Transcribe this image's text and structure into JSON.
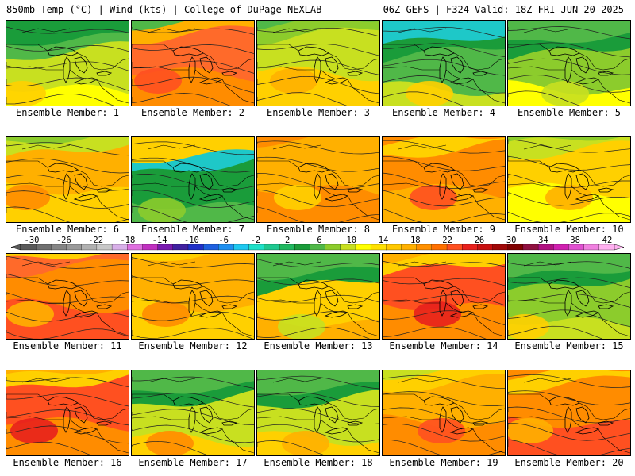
{
  "header": {
    "left_title": "850mb Temp (°C) | Wind (kts) | College of DuPage NEXLAB",
    "right_title": "06Z GEFS | F324 Valid: 18Z FRI JUN 20 2025"
  },
  "members": [
    {
      "label": "Ensemble Member: 1",
      "scheme": "cool",
      "tone": [
        "#c8e020",
        "#ffff00",
        "#ffd000",
        "#50b848",
        "#1a9c3a"
      ]
    },
    {
      "label": "Ensemble Member: 2",
      "scheme": "hot",
      "tone": [
        "#ff6a2a",
        "#ff8c00",
        "#ff5020",
        "#ffb000",
        "#50b848"
      ]
    },
    {
      "label": "Ensemble Member: 3",
      "scheme": "warm",
      "tone": [
        "#c8e020",
        "#ffd000",
        "#ffb000",
        "#8ccc2c",
        "#50b848"
      ]
    },
    {
      "label": "Ensemble Member: 4",
      "scheme": "cold",
      "tone": [
        "#50b848",
        "#c8e020",
        "#ffd000",
        "#1a9c3a",
        "#1ec8c8"
      ]
    },
    {
      "label": "Ensemble Member: 5",
      "scheme": "cold",
      "tone": [
        "#8ccc2c",
        "#ffff00",
        "#c8e020",
        "#1a9c3a",
        "#50b848"
      ]
    },
    {
      "label": "Ensemble Member: 6",
      "scheme": "warm",
      "tone": [
        "#ffb000",
        "#ffd000",
        "#ff8c00",
        "#c8e020",
        "#8ccc2c"
      ]
    },
    {
      "label": "Ensemble Member: 7",
      "scheme": "cold",
      "tone": [
        "#1a9c3a",
        "#50b848",
        "#8ccc2c",
        "#1ec8c8",
        "#ffd000"
      ]
    },
    {
      "label": "Ensemble Member: 8",
      "scheme": "warm",
      "tone": [
        "#ffb000",
        "#ff8c00",
        "#ffd000",
        "#ffb000",
        "#ff8c00"
      ]
    },
    {
      "label": "Ensemble Member: 9",
      "scheme": "hot",
      "tone": [
        "#ff8c00",
        "#ffb000",
        "#ff5020",
        "#ffd000",
        "#ff8c00"
      ]
    },
    {
      "label": "Ensemble Member: 10",
      "scheme": "warm",
      "tone": [
        "#ffd000",
        "#ffff00",
        "#ffb000",
        "#c8e020",
        "#8ccc2c"
      ]
    },
    {
      "label": "Ensemble Member: 11",
      "scheme": "hot",
      "tone": [
        "#ff8c00",
        "#ff5020",
        "#ffb000",
        "#ff6a2a",
        "#ffd000"
      ]
    },
    {
      "label": "Ensemble Member: 12",
      "scheme": "warm",
      "tone": [
        "#ffb000",
        "#ffd000",
        "#ff8c00",
        "#ffb000",
        "#ffd000"
      ]
    },
    {
      "label": "Ensemble Member: 13",
      "scheme": "cool",
      "tone": [
        "#ffd000",
        "#ffb000",
        "#c8e020",
        "#1a9c3a",
        "#50b848"
      ]
    },
    {
      "label": "Ensemble Member: 14",
      "scheme": "hot",
      "tone": [
        "#ff5020",
        "#ff8c00",
        "#e8201c",
        "#ffd000",
        "#ffb000"
      ]
    },
    {
      "label": "Ensemble Member: 15",
      "scheme": "cold",
      "tone": [
        "#8ccc2c",
        "#c8e020",
        "#ffd000",
        "#1a9c3a",
        "#50b848"
      ]
    },
    {
      "label": "Ensemble Member: 16",
      "scheme": "hot",
      "tone": [
        "#ff5020",
        "#ff8c00",
        "#e8201c",
        "#ffd000",
        "#ffb000"
      ]
    },
    {
      "label": "Ensemble Member: 17",
      "scheme": "cool",
      "tone": [
        "#c8e020",
        "#ffd000",
        "#ff8c00",
        "#1a9c3a",
        "#50b848"
      ]
    },
    {
      "label": "Ensemble Member: 18",
      "scheme": "cool",
      "tone": [
        "#c8e020",
        "#ffd000",
        "#ffb000",
        "#1a9c3a",
        "#50b848"
      ]
    },
    {
      "label": "Ensemble Member: 19",
      "scheme": "hot",
      "tone": [
        "#ffb000",
        "#ff8c00",
        "#ff5020",
        "#ffd000",
        "#c8e020"
      ]
    },
    {
      "label": "Ensemble Member: 20",
      "scheme": "hot",
      "tone": [
        "#ff8c00",
        "#ff5020",
        "#ffb000",
        "#ffd000",
        "#ff8c00"
      ]
    }
  ],
  "colorbar": {
    "tick_labels": [
      "-30",
      "-26",
      "-22",
      "-18",
      "-14",
      "-10",
      "-6",
      "-2",
      "2",
      "6",
      "10",
      "14",
      "18",
      "22",
      "26",
      "30",
      "34",
      "38",
      "42"
    ],
    "colors": [
      "#5a5a5a",
      "#707070",
      "#868686",
      "#9a9a9a",
      "#b0b0b0",
      "#c8c8c8",
      "#d8b0e8",
      "#e070e0",
      "#c030c0",
      "#7a1ab0",
      "#4020a0",
      "#2030c8",
      "#1e60e0",
      "#1e90f0",
      "#1ec8f0",
      "#1ee0c8",
      "#1ec890",
      "#20b860",
      "#1a9c3a",
      "#50b848",
      "#8ccc2c",
      "#c8e020",
      "#ffff00",
      "#ffe000",
      "#ffc800",
      "#ffb000",
      "#ff9000",
      "#ff7000",
      "#ff5020",
      "#e8201c",
      "#c81010",
      "#a00808",
      "#800000",
      "#901040",
      "#b01080",
      "#d020b0",
      "#e050d0",
      "#f080e0",
      "#ffb0f0"
    ]
  }
}
